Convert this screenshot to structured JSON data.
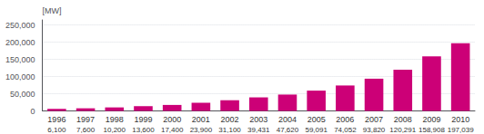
{
  "chart_data": {
    "type": "bar",
    "ylabel": "[MW]",
    "categories": [
      "1996",
      "1997",
      "1998",
      "1999",
      "2000",
      "2001",
      "2002",
      "2003",
      "2004",
      "2005",
      "2006",
      "2007",
      "2008",
      "2009",
      "2010"
    ],
    "values": [
      6100,
      7600,
      10200,
      13600,
      17400,
      23900,
      31100,
      39431,
      47620,
      59091,
      74052,
      93820,
      120291,
      158908,
      197039
    ],
    "value_labels": [
      "6,100",
      "7,600",
      "10,200",
      "13,600",
      "17,400",
      "23,900",
      "31,100",
      "39,431",
      "47,620",
      "59,091",
      "74,052",
      "93,820",
      "120,291",
      "158,908",
      "197,039"
    ],
    "data_labels": true,
    "color": "#cc0077",
    "ylim": [
      0,
      265000
    ],
    "yticks": [
      0,
      {
        "value": 50000,
        "label": "50,000"
      },
      {
        "value": 100000,
        "label": "100,000"
      },
      {
        "value": 150000,
        "label": "150,000"
      },
      {
        "value": 200000,
        "label": "200,000"
      },
      {
        "value": 250000,
        "label": "250,000"
      }
    ],
    "grid": true
  }
}
